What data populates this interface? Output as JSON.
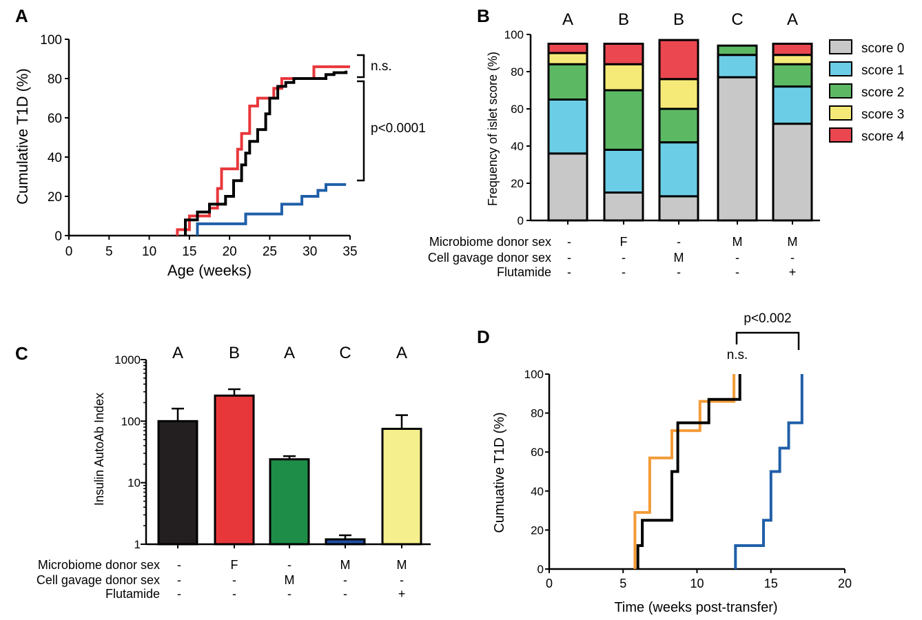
{
  "panels": {
    "a": "A",
    "b": "B",
    "c": "C",
    "d": "D"
  },
  "colors": {
    "black": "#000000",
    "red": "#e8373b",
    "blue": "#1f5fa8",
    "orange": "#f29b38",
    "score0": "#c8c8c8",
    "score1": "#6ccde6",
    "score2": "#5db864",
    "score3": "#f5ea77",
    "score4": "#ea4750",
    "barBlack": "#231f20",
    "barRed": "#e8373b",
    "barGreen": "#1e8d47",
    "barBlue": "#1f4ea3",
    "barYellow": "#f5ef8d"
  },
  "chart_data": [
    {
      "id": "A",
      "type": "line",
      "ylabel": "Cumulative T1D (%)",
      "xlabel": "Age (weeks)",
      "xlim": [
        0,
        35
      ],
      "ylim": [
        0,
        100
      ],
      "xticks": [
        "0",
        "5",
        "10",
        "15",
        "20",
        "25",
        "30",
        "35"
      ],
      "yticks": [
        "0",
        "20",
        "40",
        "60",
        "80",
        "100"
      ],
      "series": [
        {
          "color": "red",
          "x": [
            13.5,
            13.5,
            15,
            15,
            17.5,
            17.5,
            18.5,
            18.5,
            19,
            19,
            21,
            21,
            21.5,
            21.5,
            22.5,
            22.5,
            23.5,
            23.5,
            25.5,
            25.5,
            26.5,
            26.5,
            30.5,
            30.5,
            35
          ],
          "y": [
            0,
            3,
            3,
            10,
            10,
            14,
            14,
            24,
            24,
            34,
            34,
            44,
            44,
            52,
            52,
            66,
            66,
            70,
            70,
            75,
            75,
            80,
            80,
            86,
            86
          ]
        },
        {
          "color": "black",
          "x": [
            14.5,
            14.5,
            16,
            16,
            17.5,
            17.5,
            19.5,
            19.5,
            20.5,
            20.5,
            21.5,
            21.5,
            22,
            22,
            22.5,
            22.5,
            23.5,
            23.5,
            24.5,
            24.5,
            25,
            25,
            26,
            26,
            27,
            27,
            28,
            28,
            32,
            32,
            33,
            33,
            34.5,
            34.5
          ],
          "y": [
            0,
            8,
            8,
            12,
            12,
            16,
            16,
            20,
            20,
            28,
            28,
            36,
            36,
            42,
            42,
            48,
            48,
            54,
            54,
            62,
            62,
            70,
            70,
            76,
            76,
            78,
            78,
            80,
            80,
            82,
            82,
            83,
            83,
            84
          ]
        },
        {
          "color": "blue",
          "x": [
            16,
            16,
            22,
            22,
            26.5,
            26.5,
            29,
            29,
            31,
            31,
            32,
            32,
            34.5
          ],
          "y": [
            0,
            6,
            6,
            11,
            11,
            16,
            16,
            20,
            20,
            23,
            23,
            26,
            26
          ]
        }
      ],
      "annotations": [
        "n.s.",
        "p<0.0001"
      ]
    },
    {
      "id": "B",
      "type": "bar",
      "ylabel": "Frequency of islet score (%)",
      "ylim": [
        0,
        100
      ],
      "yticks": [
        "0",
        "20",
        "40",
        "60",
        "80",
        "100"
      ],
      "letters": [
        "A",
        "B",
        "B",
        "C",
        "A"
      ],
      "legend": [
        "score 0",
        "score 1",
        "score 2",
        "score 3",
        "score 4"
      ],
      "stacks": [
        [
          36,
          29,
          19,
          6,
          5
        ],
        [
          15,
          23,
          32,
          14,
          11
        ],
        [
          13,
          29,
          18,
          16,
          21
        ],
        [
          77,
          12,
          5,
          0,
          0
        ],
        [
          52,
          20,
          12,
          5,
          6
        ]
      ],
      "rows": [
        {
          "label": "Microbiome donor sex",
          "values": [
            "-",
            "F",
            "-",
            "M",
            "M"
          ]
        },
        {
          "label": "Cell gavage donor sex",
          "values": [
            "-",
            "-",
            "M",
            "-",
            "-"
          ]
        },
        {
          "label": "Flutamide",
          "values": [
            "-",
            "-",
            "-",
            "-",
            "+"
          ]
        }
      ]
    },
    {
      "id": "C",
      "type": "bar",
      "ylabel": "Insulin AutoAb Index",
      "scale": "log",
      "ylim": [
        1,
        1000
      ],
      "yticks": [
        "1",
        "10",
        "100",
        "1000"
      ],
      "letters": [
        "A",
        "B",
        "A",
        "C",
        "A"
      ],
      "values": [
        100,
        260,
        24,
        1.2,
        75
      ],
      "errors": [
        160,
        330,
        27,
        1.4,
        125
      ],
      "bar_colors": [
        "barBlack",
        "barRed",
        "barGreen",
        "barBlue",
        "barYellow"
      ],
      "rows": [
        {
          "label": "Microbiome donor sex",
          "values": [
            "-",
            "F",
            "-",
            "M",
            "M"
          ]
        },
        {
          "label": "Cell gavage donor sex",
          "values": [
            "-",
            "-",
            "M",
            "-",
            "-"
          ]
        },
        {
          "label": "Flutamide",
          "values": [
            "-",
            "-",
            "-",
            "-",
            "+"
          ]
        }
      ]
    },
    {
      "id": "D",
      "type": "line",
      "ylabel": "Cumuative T1D (%)",
      "xlabel": "Time (weeks post-transfer)",
      "xlim": [
        0,
        20
      ],
      "ylim": [
        0,
        100
      ],
      "xticks": [
        "0",
        "5",
        "10",
        "15",
        "20"
      ],
      "yticks": [
        "0",
        "20",
        "40",
        "60",
        "80",
        "100"
      ],
      "series": [
        {
          "color": "orange",
          "x": [
            5.8,
            5.8,
            6.8,
            6.8,
            8.3,
            8.3,
            10.2,
            10.2,
            12.5,
            12.5
          ],
          "y": [
            0,
            29,
            29,
            57,
            57,
            71,
            71,
            86,
            86,
            100
          ]
        },
        {
          "color": "black",
          "x": [
            6,
            6,
            6.3,
            6.3,
            8.3,
            8.3,
            8.7,
            8.7,
            9,
            9,
            10.8,
            10.8,
            12.9,
            12.9
          ],
          "y": [
            0,
            12,
            12,
            25,
            25,
            50,
            50,
            75,
            75,
            75,
            75,
            87,
            87,
            100
          ]
        },
        {
          "color": "blue",
          "x": [
            12.6,
            12.6,
            14.5,
            14.5,
            15,
            15,
            15.6,
            15.6,
            16.2,
            16.2,
            17.1,
            17.1
          ],
          "y": [
            0,
            12,
            12,
            25,
            25,
            50,
            50,
            62,
            62,
            75,
            75,
            100
          ]
        }
      ],
      "annotations": [
        "n.s.",
        "p<0.002"
      ]
    }
  ]
}
